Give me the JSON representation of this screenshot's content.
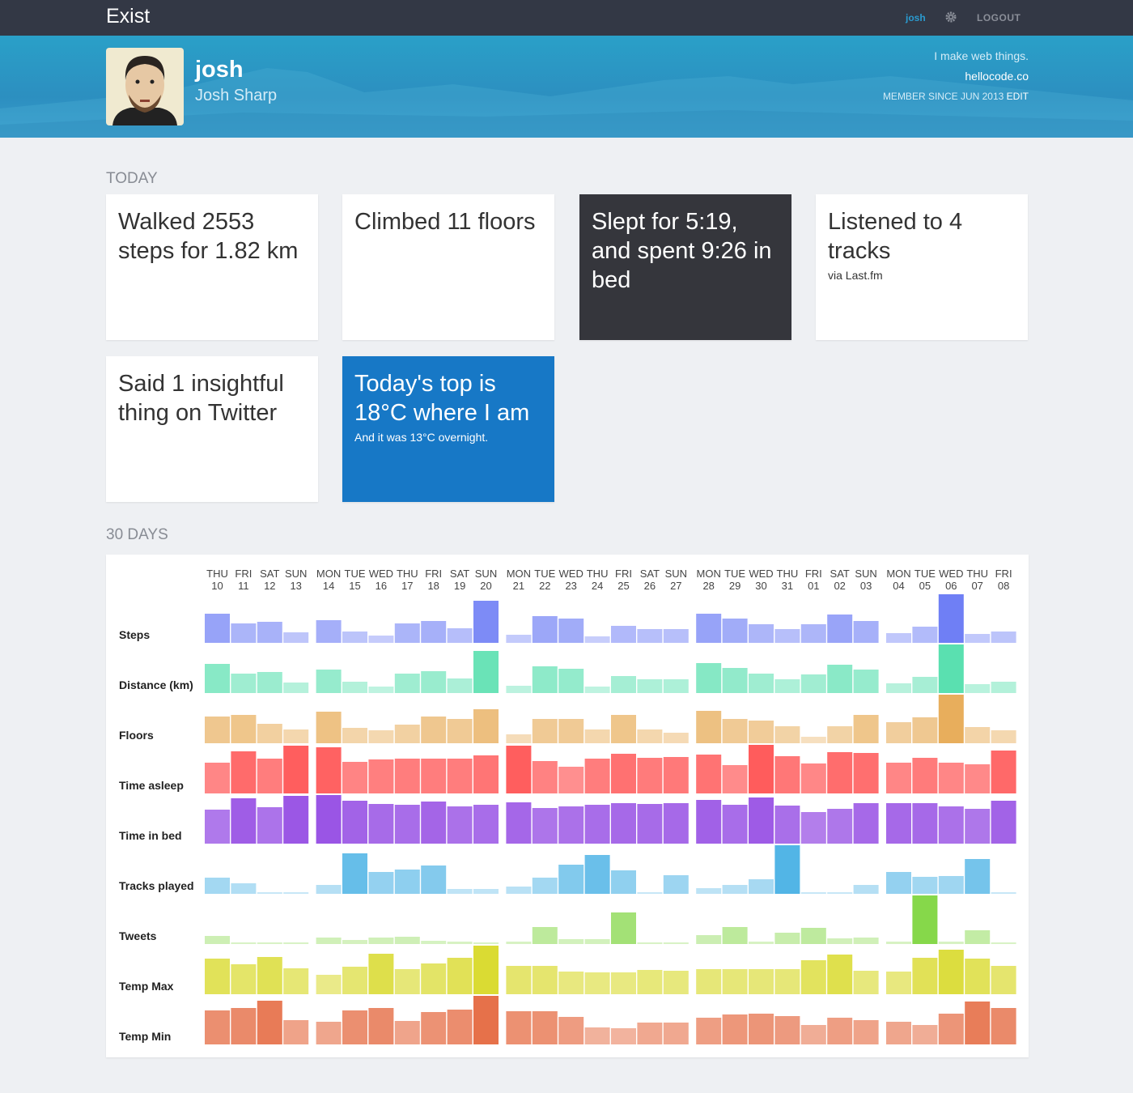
{
  "header": {
    "brand": "Exist",
    "user_link": "josh",
    "logout": "LOGOUT"
  },
  "profile": {
    "username": "josh",
    "full_name": "Josh Sharp",
    "bio": "I make web things.",
    "website": "hellocode.co",
    "member_since": "MEMBER SINCE JUN 2013",
    "edit": "EDIT"
  },
  "today": {
    "title": "TODAY",
    "cards": [
      {
        "style": "white",
        "text": [
          "Walked ",
          "2553",
          " steps for ",
          "1.82",
          " km"
        ]
      },
      {
        "style": "white",
        "text": [
          "Climbed ",
          "11",
          " floors"
        ]
      },
      {
        "style": "dark",
        "text": [
          "Slept for ",
          "5:19",
          ", and spent ",
          "9:26",
          " in bed"
        ]
      },
      {
        "style": "white",
        "text": [
          "Listened to ",
          "4",
          " tracks"
        ],
        "note": "via Last.fm"
      },
      {
        "style": "white",
        "text": [
          "Said ",
          "1",
          " insightful thing on Twitter"
        ]
      },
      {
        "style": "blue",
        "text": [
          "Today's top is ",
          "18°C",
          " where I am"
        ],
        "note": "And it was 13°C overnight."
      }
    ]
  },
  "chart_data": {
    "type": "bar",
    "title": "30 DAYS",
    "ylim": [
      0,
      60
    ],
    "categories": [
      [
        "THU",
        "10"
      ],
      [
        "FRI",
        "11"
      ],
      [
        "SAT",
        "12"
      ],
      [
        "SUN",
        "13"
      ],
      [
        "MON",
        "14"
      ],
      [
        "TUE",
        "15"
      ],
      [
        "WED",
        "16"
      ],
      [
        "THU",
        "17"
      ],
      [
        "FRI",
        "18"
      ],
      [
        "SAT",
        "19"
      ],
      [
        "SUN",
        "20"
      ],
      [
        "MON",
        "21"
      ],
      [
        "TUE",
        "22"
      ],
      [
        "WED",
        "23"
      ],
      [
        "THU",
        "24"
      ],
      [
        "FRI",
        "25"
      ],
      [
        "SAT",
        "26"
      ],
      [
        "SUN",
        "27"
      ],
      [
        "MON",
        "28"
      ],
      [
        "TUE",
        "29"
      ],
      [
        "WED",
        "30"
      ],
      [
        "THU",
        "31"
      ],
      [
        "FRI",
        "01"
      ],
      [
        "SAT",
        "02"
      ],
      [
        "SUN",
        "03"
      ],
      [
        "MON",
        "04"
      ],
      [
        "TUE",
        "05"
      ],
      [
        "WED",
        "06"
      ],
      [
        "THU",
        "07"
      ],
      [
        "FRI",
        "08"
      ]
    ],
    "series": [
      {
        "name": "Steps",
        "color": "#6f7ff5",
        "values": [
          36,
          24,
          26,
          13,
          28,
          14,
          9,
          24,
          27,
          18,
          52,
          10,
          33,
          30,
          8,
          21,
          17,
          17,
          36,
          30,
          23,
          17,
          23,
          35,
          27,
          12,
          20,
          60,
          11,
          14
        ]
      },
      {
        "name": "Distance (km)",
        "color": "#5ae0b0",
        "values": [
          36,
          24,
          26,
          13,
          29,
          14,
          8,
          24,
          27,
          18,
          52,
          9,
          33,
          30,
          8,
          21,
          17,
          17,
          37,
          31,
          24,
          17,
          23,
          35,
          29,
          12,
          20,
          60,
          11,
          14
        ]
      },
      {
        "name": "Floors",
        "color": "#e8ae5c",
        "values": [
          33,
          35,
          24,
          17,
          39,
          19,
          16,
          23,
          33,
          30,
          42,
          11,
          30,
          30,
          17,
          35,
          17,
          13,
          40,
          30,
          28,
          21,
          8,
          21,
          35,
          26,
          32,
          60,
          20,
          16
        ]
      },
      {
        "name": "Time asleep",
        "color": "#ff5c5c",
        "values": [
          38,
          52,
          43,
          59,
          57,
          39,
          42,
          43,
          43,
          43,
          47,
          59,
          40,
          33,
          43,
          49,
          44,
          45,
          48,
          35,
          60,
          46,
          37,
          51,
          50,
          38,
          44,
          38,
          36,
          53
        ]
      },
      {
        "name": "Time in bed",
        "color": "#9a55e5",
        "values": [
          42,
          56,
          45,
          59,
          60,
          53,
          49,
          48,
          52,
          46,
          48,
          51,
          44,
          46,
          48,
          50,
          49,
          50,
          54,
          48,
          57,
          47,
          39,
          43,
          50,
          50,
          50,
          46,
          43,
          53
        ]
      },
      {
        "name": "Tracks played",
        "color": "#52b5e6",
        "values": [
          20,
          13,
          2,
          2,
          11,
          50,
          27,
          30,
          35,
          6,
          6,
          9,
          20,
          36,
          48,
          29,
          2,
          23,
          7,
          11,
          18,
          60,
          2,
          2,
          11,
          27,
          21,
          22,
          43,
          2
        ]
      },
      {
        "name": "Tweets",
        "color": "#86d84a",
        "values": [
          10,
          2,
          2,
          2,
          8,
          5,
          8,
          9,
          4,
          3,
          2,
          3,
          21,
          6,
          6,
          39,
          2,
          2,
          11,
          21,
          3,
          14,
          20,
          7,
          8,
          3,
          60,
          3,
          17,
          2
        ]
      },
      {
        "name": "Temp Max",
        "color": "#dadb33",
        "values": [
          44,
          37,
          46,
          32,
          24,
          34,
          50,
          31,
          38,
          45,
          60,
          35,
          35,
          28,
          27,
          27,
          30,
          29,
          31,
          31,
          31,
          31,
          42,
          49,
          29,
          28,
          45,
          55,
          44,
          35
        ]
      },
      {
        "name": "Temp Min",
        "color": "#e6714a",
        "values": [
          42,
          45,
          54,
          30,
          28,
          42,
          45,
          29,
          40,
          43,
          60,
          41,
          41,
          34,
          21,
          20,
          27,
          27,
          33,
          37,
          38,
          35,
          24,
          33,
          30,
          28,
          24,
          38,
          53,
          45
        ]
      }
    ]
  }
}
